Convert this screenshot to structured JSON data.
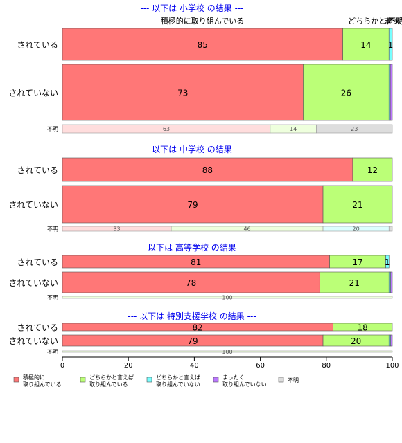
{
  "chart_data": {
    "type": "bar",
    "orientation": "horizontal",
    "stacked": true,
    "xlim": [
      0,
      100
    ],
    "xticks": [
      0,
      20,
      40,
      60,
      80,
      100
    ],
    "top_labels": [
      "積極的に取り組んでいる",
      "どちらかと言えば",
      "不明",
      "まったく"
    ],
    "legend": {
      "placement": "bottom",
      "items": [
        {
          "label_line1": "積極的に",
          "label_line2": "取り組んでいる",
          "color": "#FF7777"
        },
        {
          "label_line1": "どちらかと言えば",
          "label_line2": "取り組んでいる",
          "color": "#BBFF77"
        },
        {
          "label_line1": "どちらかと言えば",
          "label_line2": "取り組んでいない",
          "color": "#77FFFF"
        },
        {
          "label_line1": "まったく",
          "label_line2": "取り組んでいない",
          "color": "#BB77FF"
        },
        {
          "label_line1": "不明",
          "label_line2": "",
          "color": "#DDDDDD"
        }
      ]
    },
    "panels": [
      {
        "title": "--- 以下は 小学校 の結果 ---",
        "rows": [
          {
            "label": "されている",
            "values": [
              85,
              14,
              1,
              0,
              0
            ],
            "value_labels": [
              "85",
              "14",
              "1",
              "",
              ""
            ]
          },
          {
            "label": "されていない",
            "values": [
              73,
              26,
              0.4,
              0.6,
              0
            ],
            "value_labels": [
              "73",
              "26",
              "",
              "",
              ""
            ]
          },
          {
            "label": "不明",
            "faded": true,
            "values": [
              63,
              14,
              0,
              0,
              23
            ],
            "value_labels": [
              "63",
              "14",
              "",
              "",
              "23"
            ]
          }
        ]
      },
      {
        "title": "--- 以下は 中学校 の結果 ---",
        "rows": [
          {
            "label": "されている",
            "values": [
              88,
              12,
              0,
              0,
              0
            ],
            "value_labels": [
              "88",
              "12",
              "",
              "",
              ""
            ]
          },
          {
            "label": "されていない",
            "values": [
              79,
              21,
              0,
              0,
              0
            ],
            "value_labels": [
              "79",
              "21",
              "",
              "",
              ""
            ]
          },
          {
            "label": "不明",
            "faded": true,
            "values": [
              33,
              46,
              20,
              0,
              1
            ],
            "value_labels": [
              "33",
              "46",
              "20",
              "",
              ""
            ]
          }
        ]
      },
      {
        "title": "--- 以下は 高等学校 の結果 ---",
        "rows": [
          {
            "label": "されている",
            "values": [
              81,
              17,
              1,
              0,
              0
            ],
            "value_labels": [
              "81",
              "17",
              "1",
              "",
              ""
            ]
          },
          {
            "label": "されていない",
            "values": [
              78,
              21,
              0.5,
              0.5,
              0
            ],
            "value_labels": [
              "78",
              "21",
              "",
              "",
              ""
            ]
          },
          {
            "label": "不明",
            "faded": true,
            "values": [
              0,
              100,
              0,
              0,
              0
            ],
            "value_labels": [
              "",
              "100",
              "",
              "",
              ""
            ]
          }
        ]
      },
      {
        "title": "--- 以下は 特別支援学校 の結果 ---",
        "rows": [
          {
            "label": "されている",
            "values": [
              82,
              18,
              0,
              0,
              0
            ],
            "value_labels": [
              "82",
              "18",
              "",
              "",
              ""
            ]
          },
          {
            "label": "されていない",
            "values": [
              79,
              20,
              0.5,
              0.5,
              0
            ],
            "value_labels": [
              "79",
              "20",
              "",
              "",
              ""
            ]
          },
          {
            "label": "不明",
            "faded": true,
            "values": [
              0,
              100,
              0,
              0,
              0
            ],
            "value_labels": [
              "",
              "100",
              "",
              "",
              ""
            ]
          }
        ]
      }
    ]
  }
}
